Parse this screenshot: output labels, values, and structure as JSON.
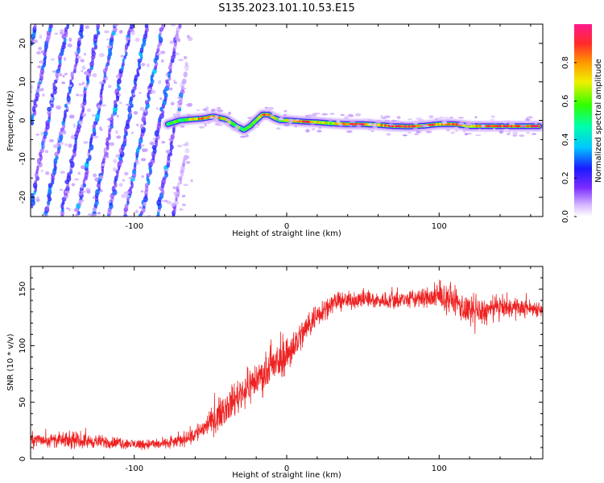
{
  "title": "S135.2023.101.10.53.E15",
  "colors": {
    "snr_line": "#ee2222",
    "spec_low": "#cc99ff",
    "spec_mid": "#7711ff",
    "spec_high": "#ff2244"
  },
  "chart_data": [
    {
      "type": "heatmap",
      "title": "",
      "xlabel": "Height of straight line (km)",
      "ylabel": "Frequency (Hz)",
      "xlim": [
        -168,
        168
      ],
      "ylim": [
        -25,
        25
      ],
      "xticks": [
        -100,
        0,
        100
      ],
      "xtick_labels": [
        "-100",
        "0",
        "100"
      ],
      "yticks": [
        -20,
        -10,
        0,
        10,
        20
      ],
      "ytick_labels": [
        "-20",
        "-10",
        "0",
        "10",
        "20"
      ],
      "colorbar": {
        "label": "Normalized spectral amplitude",
        "range": [
          0,
          1
        ],
        "ticks": [
          0.0,
          0.2,
          0.4,
          0.6,
          0.8
        ],
        "tick_labels": [
          "0.0",
          "0.2",
          "0.4",
          "0.6",
          "0.8"
        ],
        "colormap": "white-purple-blue-cyan-green-yellow-orange-red-magenta"
      },
      "ridge": {
        "x": [
          -78,
          -70,
          -62,
          -55,
          -48,
          -40,
          -33,
          -28,
          -24,
          -20,
          -16,
          -12,
          -8,
          -4,
          0,
          10,
          20,
          30,
          40,
          50,
          60,
          70,
          80,
          90,
          100,
          110,
          120,
          130,
          140,
          150,
          160,
          166
        ],
        "y": [
          -1,
          0,
          0.3,
          0.5,
          1,
          0.3,
          -1.5,
          -2.5,
          -1.5,
          0,
          1.5,
          1.5,
          0.6,
          0,
          0,
          -0.3,
          -0.5,
          -0.8,
          -1,
          -1,
          -1.2,
          -1.5,
          -1.6,
          -1.4,
          -1,
          -1,
          -1.5,
          -1.5,
          -1.5,
          -1.5,
          -1.5,
          -1.5
        ],
        "amplitude": [
          0.5,
          0.55,
          0.65,
          0.85,
          0.85,
          0.7,
          0.6,
          0.6,
          0.6,
          0.65,
          0.8,
          0.85,
          0.7,
          0.55,
          0.8,
          0.9,
          0.75,
          0.65,
          0.85,
          0.9,
          0.75,
          0.9,
          0.9,
          0.9,
          0.8,
          0.9,
          0.7,
          0.9,
          0.9,
          0.9,
          0.9,
          0.9
        ]
      },
      "diagonal_streaks": {
        "x_range": [
          -168,
          -62
        ],
        "slope_hz_per_km": 2.0,
        "count": 12,
        "amplitude_typical": 0.25
      }
    },
    {
      "type": "line",
      "title": "",
      "xlabel": "Height of straight line (km)",
      "ylabel": "SNR (10 * v/v)",
      "xlim": [
        -168,
        168
      ],
      "ylim": [
        0,
        170
      ],
      "xticks": [
        -100,
        0,
        100
      ],
      "xtick_labels": [
        "-100",
        "0",
        "100"
      ],
      "yticks": [
        0,
        50,
        100,
        150
      ],
      "ytick_labels": [
        "0",
        "50",
        "100",
        "150"
      ],
      "series": [
        {
          "x": [
            -168,
            -140,
            -120,
            -100,
            -80,
            -70,
            -60,
            -50,
            -40,
            -30,
            -20,
            -10,
            0,
            10,
            20,
            30,
            40,
            50,
            60,
            70,
            80,
            90,
            100,
            110,
            120,
            130,
            140,
            150,
            160,
            168
          ],
          "mean": [
            17,
            16,
            15,
            13,
            13,
            16,
            22,
            32,
            45,
            58,
            70,
            80,
            92,
            110,
            128,
            138,
            140,
            141,
            140,
            140,
            141,
            142,
            143,
            140,
            128,
            130,
            134,
            133,
            133,
            133
          ],
          "noise_amplitude": [
            7,
            7,
            6,
            5,
            5,
            6,
            9,
            12,
            15,
            17,
            18,
            18,
            18,
            15,
            12,
            9,
            8,
            8,
            8,
            8,
            9,
            10,
            11,
            14,
            15,
            13,
            10,
            9,
            8,
            8
          ]
        }
      ]
    }
  ]
}
